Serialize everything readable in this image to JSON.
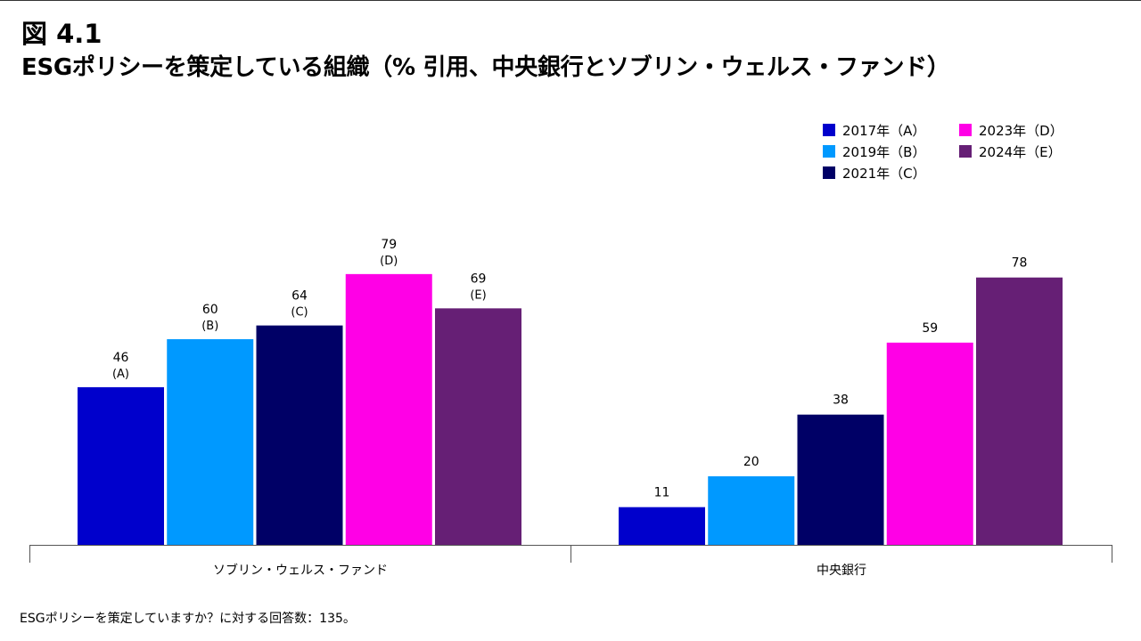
{
  "figure_number": "図 4.1",
  "title": "ESGポリシーを策定している組織（% 引用、中央銀行とソブリン・ウェルス・ファンド）",
  "footnote": "ESGポリシーを策定していますか？に対する回答数：135。",
  "chart_data": {
    "type": "bar",
    "title": "ESGポリシーを策定している組織（% 引用、中央銀行とソブリン・ウェルス・ファンド）",
    "xlabel": "",
    "ylabel": "",
    "ylim": [
      0,
      100
    ],
    "grid": false,
    "legend_position": "top-right",
    "categories": [
      "ソブリン・ウェルス・ファンド",
      "中央銀行"
    ],
    "series": [
      {
        "name": "2017年（A）",
        "tag": "(A)",
        "color": "#0000CC",
        "values": [
          46,
          11
        ],
        "labels": [
          "46",
          "11"
        ],
        "sublabels": [
          "(A)",
          ""
        ]
      },
      {
        "name": "2019年（B）",
        "tag": "(B)",
        "color": "#0099FF",
        "values": [
          60,
          20
        ],
        "labels": [
          "60",
          "20"
        ],
        "sublabels": [
          "(B)",
          ""
        ]
      },
      {
        "name": "2021年（C）",
        "tag": "(C)",
        "color": "#000066",
        "values": [
          64,
          38
        ],
        "labels": [
          "64",
          "38"
        ],
        "sublabels": [
          "(C)",
          ""
        ]
      },
      {
        "name": "2023年（D）",
        "tag": "(D)",
        "color": "#FF00E6",
        "values": [
          79,
          59
        ],
        "labels": [
          "79",
          "59"
        ],
        "sublabels": [
          "(D)",
          ""
        ]
      },
      {
        "name": "2024年（E）",
        "tag": "(E)",
        "color": "#661F75",
        "values": [
          69,
          78
        ],
        "labels": [
          "69",
          "78"
        ],
        "sublabels": [
          "(E)",
          ""
        ]
      }
    ]
  }
}
